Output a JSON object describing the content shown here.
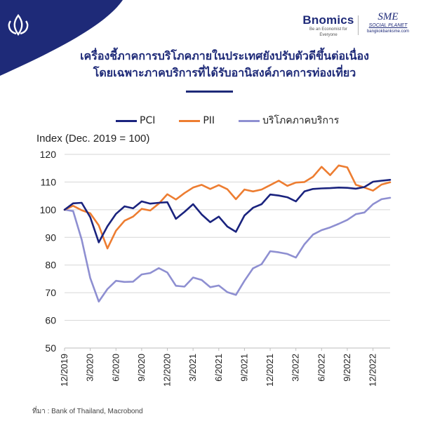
{
  "header": {
    "title_line1": "เครื่องชี้ภาคการบริโภคภายในประเทศยังปรับตัวดีขึ้นต่อเนื่อง",
    "title_line2": "โดยเฉพาะภาคบริการที่ได้รับอานิสงค์ภาคการท่องเที่ยว",
    "brand": "Bnomics",
    "brand_tagline": "Be an Economist for Everyone",
    "partner": "SME",
    "partner_sub": "SOCIAL PLANET",
    "partner_web": "bangkokbanksme.com"
  },
  "colors": {
    "navy": "#1e2a78",
    "PCI": "#1a237e",
    "PII": "#ed7d31",
    "services": "#8e8fd1"
  },
  "source_text": "ที่มา : Bank of Thailand, Macrobond",
  "chart_data": {
    "type": "line",
    "ylabel": "Index (Dec. 2019 = 100)",
    "ylim": [
      50,
      120
    ],
    "yticks": [
      50,
      60,
      70,
      80,
      90,
      100,
      110,
      120
    ],
    "grid": "horizontal",
    "legend_position": "top",
    "x_tick_labels": [
      "12/2019",
      "3/2020",
      "6/2020",
      "9/2020",
      "12/2020",
      "3/2021",
      "6/2021",
      "9/2021",
      "12/2021",
      "3/2022",
      "6/2022",
      "9/2022",
      "12/2022"
    ],
    "x": [
      "12/2019",
      "1/2020",
      "2/2020",
      "3/2020",
      "4/2020",
      "5/2020",
      "6/2020",
      "7/2020",
      "8/2020",
      "9/2020",
      "10/2020",
      "11/2020",
      "12/2020",
      "1/2021",
      "2/2021",
      "3/2021",
      "4/2021",
      "5/2021",
      "6/2021",
      "7/2021",
      "8/2021",
      "9/2021",
      "10/2021",
      "11/2021",
      "12/2021",
      "1/2022",
      "2/2022",
      "3/2022",
      "4/2022",
      "5/2022",
      "6/2022",
      "7/2022",
      "8/2022",
      "9/2022",
      "10/2022",
      "11/2022",
      "12/2022",
      "1/2023",
      "2/2023"
    ],
    "series": [
      {
        "name": "PCI",
        "color": "#1a237e",
        "values": [
          100,
          102.3,
          102.5,
          97.3,
          88.2,
          94.0,
          98.5,
          101.2,
          100.5,
          103.0,
          102.2,
          102.5,
          102.7,
          96.7,
          99.2,
          102.0,
          98.3,
          95.5,
          97.5,
          93.9,
          92.0,
          97.9,
          100.7,
          102.0,
          105.5,
          105.1,
          104.5,
          103.0,
          106.6,
          107.5,
          107.7,
          107.8,
          108.0,
          107.9,
          107.6,
          108.2,
          110.1,
          110.5,
          110.8
        ]
      },
      {
        "name": "PII",
        "color": "#ed7d31",
        "values": [
          100,
          101.4,
          99.8,
          98.7,
          94.3,
          86.0,
          92.4,
          96.0,
          97.5,
          100.3,
          99.7,
          102.2,
          105.6,
          103.7,
          106.0,
          108.0,
          109.0,
          107.5,
          108.9,
          107.4,
          103.8,
          107.3,
          106.6,
          107.3,
          108.9,
          110.5,
          108.6,
          109.8,
          110.0,
          111.9,
          115.5,
          112.5,
          116.0,
          115.3,
          109.0,
          108.0,
          106.9,
          109.1,
          109.9
        ]
      },
      {
        "name": "บริโภคภาคบริการ",
        "color": "#8e8fd1",
        "values": [
          100,
          99.5,
          89.2,
          75.3,
          66.8,
          71.3,
          74.3,
          73.9,
          74.0,
          76.6,
          77.1,
          78.9,
          77.3,
          72.5,
          72.2,
          75.5,
          74.6,
          72.0,
          72.6,
          70.2,
          69.2,
          74.3,
          78.8,
          80.3,
          85.0,
          84.6,
          84.0,
          82.7,
          87.5,
          91.0,
          92.6,
          93.6,
          94.9,
          96.3,
          98.4,
          99.0,
          102.0,
          103.8,
          104.3
        ]
      }
    ]
  }
}
